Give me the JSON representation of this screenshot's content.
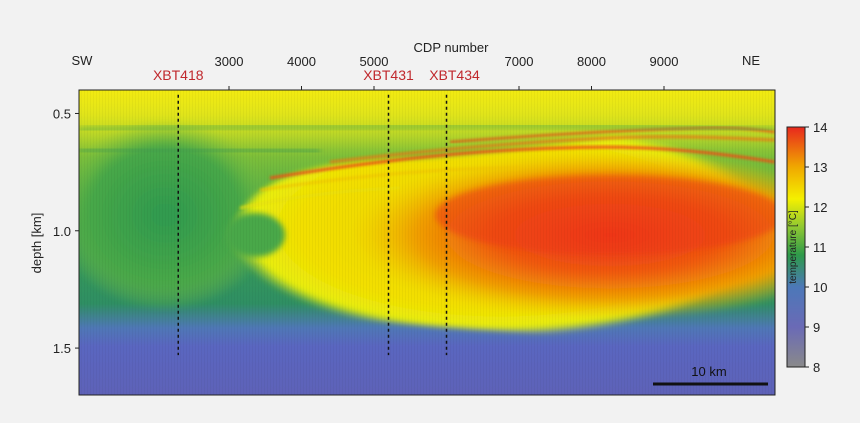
{
  "chart_data": {
    "type": "heatmap",
    "title": "",
    "top_axis": {
      "label": "CDP number",
      "ticks": [
        3000,
        4000,
        5000,
        7000,
        8000,
        9000
      ],
      "tick_labels": [
        "3000",
        "4000",
        "5000",
        "7000",
        "8000",
        "9000"
      ],
      "left_end_label": "SW",
      "right_end_label": "NE"
    },
    "y_axis": {
      "label": "depth [km]",
      "ticks": [
        0.5,
        1.0,
        1.5
      ],
      "tick_labels": [
        "0.5",
        "1.0",
        "1.5"
      ],
      "range": [
        0.4,
        1.7
      ],
      "inverted": true
    },
    "xbt_markers": [
      {
        "label": "XBT418",
        "cdp": 2300,
        "depth_range": [
          0.42,
          1.53
        ]
      },
      {
        "label": "XBT431",
        "cdp": 5200,
        "depth_range": [
          0.42,
          1.53
        ]
      },
      {
        "label": "XBT434",
        "cdp": 6000,
        "depth_range": [
          0.42,
          1.53
        ]
      }
    ],
    "scale_bar": {
      "label": "10 km"
    },
    "colorbar": {
      "label": "temperature [°C]",
      "range": [
        8,
        14
      ],
      "ticks": [
        8,
        9,
        10,
        11,
        12,
        13,
        14
      ],
      "tick_labels": [
        "8",
        "9",
        "10",
        "11",
        "12",
        "13",
        "14"
      ],
      "colors": [
        {
          "value": 8,
          "color": "#8a8a8a"
        },
        {
          "value": 9,
          "color": "#6a6ab6"
        },
        {
          "value": 10,
          "color": "#4c78b8"
        },
        {
          "value": 10.8,
          "color": "#2e9a4a"
        },
        {
          "value": 11.5,
          "color": "#8fc832"
        },
        {
          "value": 12.2,
          "color": "#f4f000"
        },
        {
          "value": 13,
          "color": "#f0a800"
        },
        {
          "value": 14,
          "color": "#e8281e"
        }
      ]
    },
    "features": [
      {
        "description_kind": "warm_lens",
        "center_cdp": 7600,
        "center_depth": 1.05,
        "peak_temperature": 13.5
      },
      {
        "description_kind": "background_upper",
        "temperature": 11.8
      },
      {
        "description_kind": "background_deep",
        "temperature": 9.3
      }
    ]
  },
  "colors": {
    "background": "#f2f2f2",
    "marker_label": "#c0282d",
    "axis": "#222222"
  }
}
